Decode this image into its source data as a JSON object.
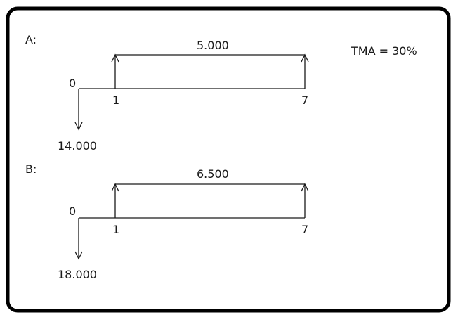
{
  "tma": "TMA = 30%",
  "diagrams": [
    {
      "label": "A:",
      "start_label": "0",
      "period_start_label": "1",
      "period_end_label": "7",
      "annuity_label": "5.000",
      "outflow_label": "14.000"
    },
    {
      "label": "B:",
      "start_label": "0",
      "period_start_label": "1",
      "period_end_label": "7",
      "annuity_label": "6.500",
      "outflow_label": "18.000"
    }
  ],
  "colors": {
    "border": "#000000",
    "line": "#1a1a1a",
    "background": "#ffffff"
  }
}
